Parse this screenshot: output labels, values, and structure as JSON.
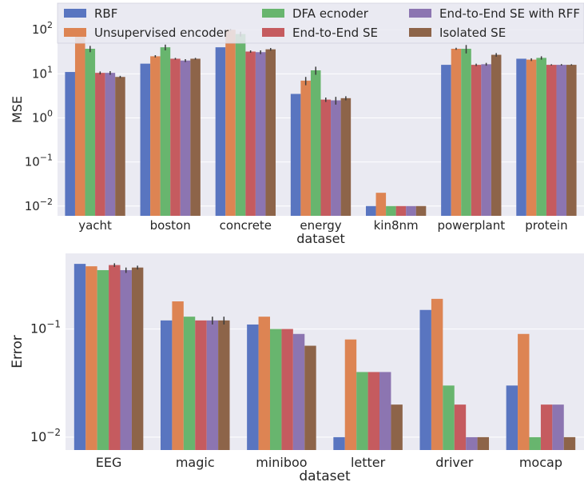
{
  "colors": {
    "plot_background": "#eaeaf2",
    "grid": "#ffffff",
    "error_bar": "#3b3b3b",
    "series": [
      "#5975c0",
      "#dd8453",
      "#68b56e",
      "#c55b5f",
      "#8c75b1",
      "#8d6449"
    ]
  },
  "chart_data": [
    {
      "type": "bar",
      "title": "",
      "xlabel": "dataset",
      "ylabel": "MSE",
      "yscale": "log",
      "ylim": [
        0.006,
        400
      ],
      "yticks": [
        0.01,
        0.1,
        1,
        10,
        100
      ],
      "ytick_labels": [
        {
          "base": "10",
          "exp": "−2"
        },
        {
          "base": "10",
          "exp": "−1"
        },
        {
          "base": "10",
          "exp": "0"
        },
        {
          "base": "10",
          "exp": "1"
        },
        {
          "base": "10",
          "exp": "2"
        }
      ],
      "grid": true,
      "legend": {
        "placement": "top",
        "entries": [
          "RBF",
          "Unsupervised encoder",
          "DFA ecnoder",
          "End-to-End SE",
          "End-to-End SE with RFF",
          "Isolated SE"
        ]
      },
      "categories": [
        "yacht",
        "boston",
        "concrete",
        "energy",
        "kin8nm",
        "powerplant",
        "protein"
      ],
      "series": [
        {
          "name": "RBF",
          "values": [
            11,
            17,
            40,
            3.5,
            0.01,
            16,
            22
          ],
          "errors": [
            0,
            0,
            0,
            0,
            0,
            0,
            0
          ]
        },
        {
          "name": "Unsupervised encoder",
          "values": [
            75,
            25,
            100,
            7,
            0.02,
            37,
            21
          ],
          "errors": [
            4,
            1.5,
            5,
            1.5,
            0,
            2,
            1.5
          ]
        },
        {
          "name": "DFA ecnoder",
          "values": [
            37,
            40,
            80,
            12,
            0.01,
            37,
            23
          ],
          "errors": [
            6,
            6,
            10,
            2.5,
            0,
            8,
            2
          ]
        },
        {
          "name": "End-to-End SE",
          "values": [
            10.5,
            22,
            32,
            2.6,
            0.01,
            16,
            16
          ],
          "errors": [
            0.8,
            1,
            2,
            0.3,
            0,
            1,
            0.5
          ]
        },
        {
          "name": "End-to-End SE with RFF",
          "values": [
            10.5,
            20,
            31,
            2.5,
            0.01,
            16.5,
            16
          ],
          "errors": [
            1,
            1.5,
            3,
            0.5,
            0,
            1.2,
            0.6
          ]
        },
        {
          "name": "Isolated SE",
          "values": [
            8.5,
            22,
            36,
            2.8,
            0.01,
            27,
            16
          ],
          "errors": [
            0.5,
            1,
            2.5,
            0.3,
            0,
            2.5,
            0.5
          ]
        }
      ]
    },
    {
      "type": "bar",
      "title": "",
      "xlabel": "dataset",
      "ylabel": "Error",
      "yscale": "log",
      "ylim": [
        0.0076,
        0.5
      ],
      "yticks": [
        0.01,
        0.1
      ],
      "ytick_labels": [
        {
          "base": "10",
          "exp": "−2"
        },
        {
          "base": "10",
          "exp": "−1"
        }
      ],
      "grid": true,
      "categories": [
        "EEG",
        "magic",
        "miniboo",
        "letter",
        "driver",
        "mocap"
      ],
      "series": [
        {
          "name": "RBF",
          "values": [
            0.4,
            0.12,
            0.11,
            0.01,
            0.15,
            0.03
          ],
          "errors": [
            0,
            0,
            0,
            0,
            0,
            0
          ]
        },
        {
          "name": "Unsupervised encoder",
          "values": [
            0.38,
            0.18,
            0.13,
            0.08,
            0.19,
            0.09
          ],
          "errors": [
            0,
            0,
            0,
            0,
            0,
            0
          ]
        },
        {
          "name": "DFA ecnoder",
          "values": [
            0.35,
            0.13,
            0.1,
            0.04,
            0.03,
            0.01
          ],
          "errors": [
            0,
            0,
            0,
            0,
            0,
            0
          ]
        },
        {
          "name": "End-to-End SE",
          "values": [
            0.39,
            0.12,
            0.1,
            0.04,
            0.02,
            0.02
          ],
          "errors": [
            0.015,
            0,
            0,
            0,
            0,
            0
          ]
        },
        {
          "name": "End-to-End SE with RFF",
          "values": [
            0.35,
            0.12,
            0.09,
            0.04,
            0.01,
            0.02
          ],
          "errors": [
            0.02,
            0.01,
            0,
            0,
            0,
            0
          ]
        },
        {
          "name": "Isolated SE",
          "values": [
            0.37,
            0.12,
            0.07,
            0.02,
            0.01,
            0.01
          ],
          "errors": [
            0.015,
            0.01,
            0,
            0,
            0,
            0
          ]
        }
      ]
    }
  ]
}
